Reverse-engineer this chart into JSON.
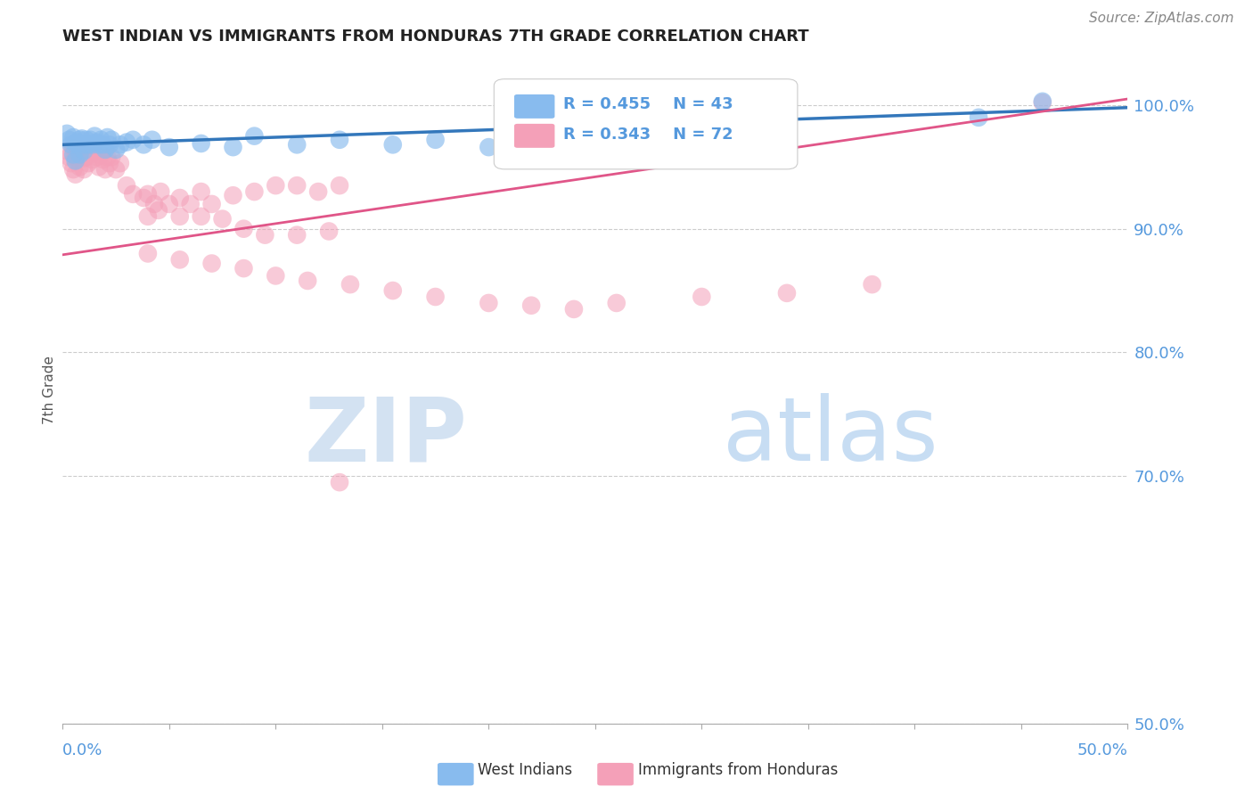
{
  "title": "WEST INDIAN VS IMMIGRANTS FROM HONDURAS 7TH GRADE CORRELATION CHART",
  "source": "Source: ZipAtlas.com",
  "ylabel": "7th Grade",
  "ylabel_right_labels": [
    "100.0%",
    "90.0%",
    "80.0%",
    "70.0%",
    "50.0%"
  ],
  "ylabel_right_ticks": [
    1.0,
    0.9,
    0.8,
    0.7,
    0.5
  ],
  "xmin": 0.0,
  "xmax": 0.5,
  "ymin": 0.5,
  "ymax": 1.04,
  "watermark_zip": "ZIP",
  "watermark_atlas": "atlas",
  "legend_blue_r": "R = 0.455",
  "legend_blue_n": "N = 43",
  "legend_pink_r": "R = 0.343",
  "legend_pink_n": "N = 72",
  "blue_color": "#88bbee",
  "pink_color": "#f4a0b8",
  "blue_line_color": "#3377bb",
  "pink_line_color": "#e05588",
  "title_color": "#222222",
  "axis_label_color": "#5599dd",
  "grid_color": "#cccccc",
  "blue_scatter_x": [
    0.002,
    0.003,
    0.004,
    0.005,
    0.005,
    0.006,
    0.006,
    0.007,
    0.008,
    0.008,
    0.009,
    0.01,
    0.01,
    0.011,
    0.012,
    0.013,
    0.014,
    0.015,
    0.016,
    0.017,
    0.018,
    0.019,
    0.02,
    0.021,
    0.022,
    0.023,
    0.025,
    0.027,
    0.03,
    0.033,
    0.038,
    0.042,
    0.05,
    0.065,
    0.08,
    0.09,
    0.11,
    0.13,
    0.155,
    0.175,
    0.2,
    0.43,
    0.46
  ],
  "blue_scatter_y": [
    0.977,
    0.972,
    0.968,
    0.974,
    0.96,
    0.969,
    0.955,
    0.97,
    0.972,
    0.96,
    0.973,
    0.968,
    0.963,
    0.972,
    0.968,
    0.972,
    0.968,
    0.975,
    0.97,
    0.968,
    0.972,
    0.968,
    0.964,
    0.974,
    0.968,
    0.972,
    0.964,
    0.968,
    0.97,
    0.972,
    0.968,
    0.972,
    0.966,
    0.969,
    0.966,
    0.975,
    0.968,
    0.972,
    0.968,
    0.972,
    0.966,
    0.99,
    1.003
  ],
  "pink_scatter_x": [
    0.002,
    0.003,
    0.004,
    0.005,
    0.005,
    0.006,
    0.006,
    0.007,
    0.008,
    0.008,
    0.009,
    0.01,
    0.01,
    0.011,
    0.012,
    0.013,
    0.014,
    0.015,
    0.016,
    0.017,
    0.018,
    0.019,
    0.02,
    0.021,
    0.022,
    0.023,
    0.025,
    0.027,
    0.03,
    0.033,
    0.038,
    0.04,
    0.043,
    0.046,
    0.05,
    0.055,
    0.06,
    0.065,
    0.07,
    0.08,
    0.09,
    0.1,
    0.11,
    0.12,
    0.13,
    0.04,
    0.045,
    0.055,
    0.065,
    0.075,
    0.085,
    0.095,
    0.11,
    0.125,
    0.04,
    0.055,
    0.07,
    0.085,
    0.1,
    0.115,
    0.135,
    0.155,
    0.175,
    0.2,
    0.22,
    0.24,
    0.26,
    0.3,
    0.34,
    0.38,
    0.13,
    0.46
  ],
  "pink_scatter_y": [
    0.963,
    0.958,
    0.953,
    0.965,
    0.948,
    0.958,
    0.944,
    0.963,
    0.958,
    0.95,
    0.963,
    0.957,
    0.948,
    0.958,
    0.953,
    0.962,
    0.956,
    0.962,
    0.958,
    0.95,
    0.96,
    0.956,
    0.948,
    0.958,
    0.953,
    0.958,
    0.948,
    0.953,
    0.935,
    0.928,
    0.925,
    0.928,
    0.92,
    0.93,
    0.92,
    0.925,
    0.92,
    0.93,
    0.92,
    0.927,
    0.93,
    0.935,
    0.935,
    0.93,
    0.935,
    0.91,
    0.915,
    0.91,
    0.91,
    0.908,
    0.9,
    0.895,
    0.895,
    0.898,
    0.88,
    0.875,
    0.872,
    0.868,
    0.862,
    0.858,
    0.855,
    0.85,
    0.845,
    0.84,
    0.838,
    0.835,
    0.84,
    0.845,
    0.848,
    0.855,
    0.695,
    1.002
  ]
}
